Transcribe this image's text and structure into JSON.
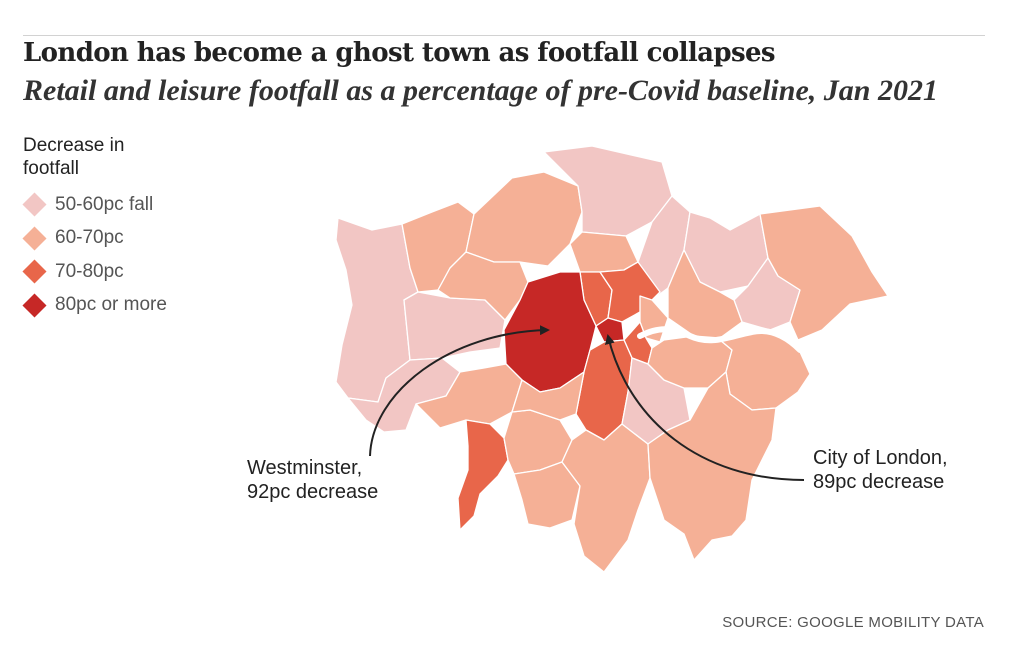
{
  "title": "London has become a ghost town as footfall collapses",
  "subtitle": "Retail and leisure footfall as a percentage of  pre-Covid baseline, Jan 2021",
  "legend": {
    "title": "Decrease in footfall",
    "items": [
      {
        "label": "50-60pc fall",
        "color": "#f2c6c4"
      },
      {
        "label": "60-70pc",
        "color": "#f5b096"
      },
      {
        "label": "70-80pc",
        "color": "#e8664a"
      },
      {
        "label": "80pc or more",
        "color": "#c62826"
      }
    ]
  },
  "annotations": {
    "westminster": {
      "line1": "Westminster,",
      "line2": "92pc decrease"
    },
    "city": {
      "line1": "City of London,",
      "line2": "89pc decrease"
    }
  },
  "source": "SOURCE: GOOGLE MOBILITY DATA",
  "colors": {
    "border": "#ffffff",
    "arrow": "#222222",
    "river": "#ffffff"
  }
}
